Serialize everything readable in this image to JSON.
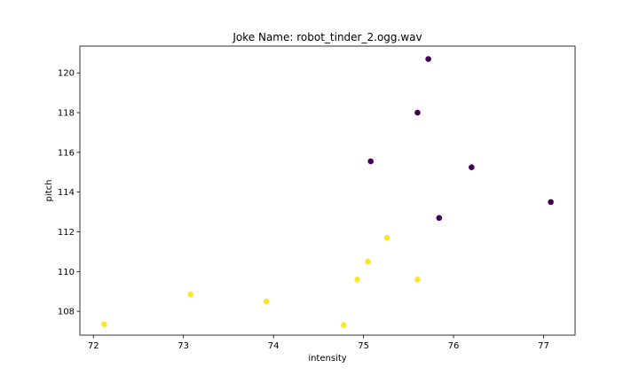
{
  "chart_data": {
    "type": "scatter",
    "title": "Joke Name: robot_tinder_2.ogg.wav",
    "xlabel": "intensity",
    "ylabel": "pitch",
    "xlim": [
      71.85,
      77.35
    ],
    "ylim": [
      106.8,
      121.35
    ],
    "xticks": [
      72,
      73,
      74,
      75,
      76,
      77
    ],
    "yticks": [
      108,
      110,
      112,
      114,
      116,
      118,
      120
    ],
    "grid": false,
    "legend": "none",
    "series": [
      {
        "color": "#440154",
        "x": [
          75.72,
          75.6,
          75.08,
          76.2,
          77.08,
          75.84
        ],
        "y": [
          120.7,
          118.0,
          115.55,
          115.25,
          113.5,
          112.7
        ]
      },
      {
        "color": "#fde725",
        "x": [
          75.26,
          75.05,
          74.93,
          75.6,
          73.08,
          73.92,
          72.12,
          74.78
        ],
        "y": [
          111.7,
          110.5,
          109.6,
          109.6,
          108.85,
          108.5,
          107.35,
          107.3
        ]
      }
    ]
  }
}
